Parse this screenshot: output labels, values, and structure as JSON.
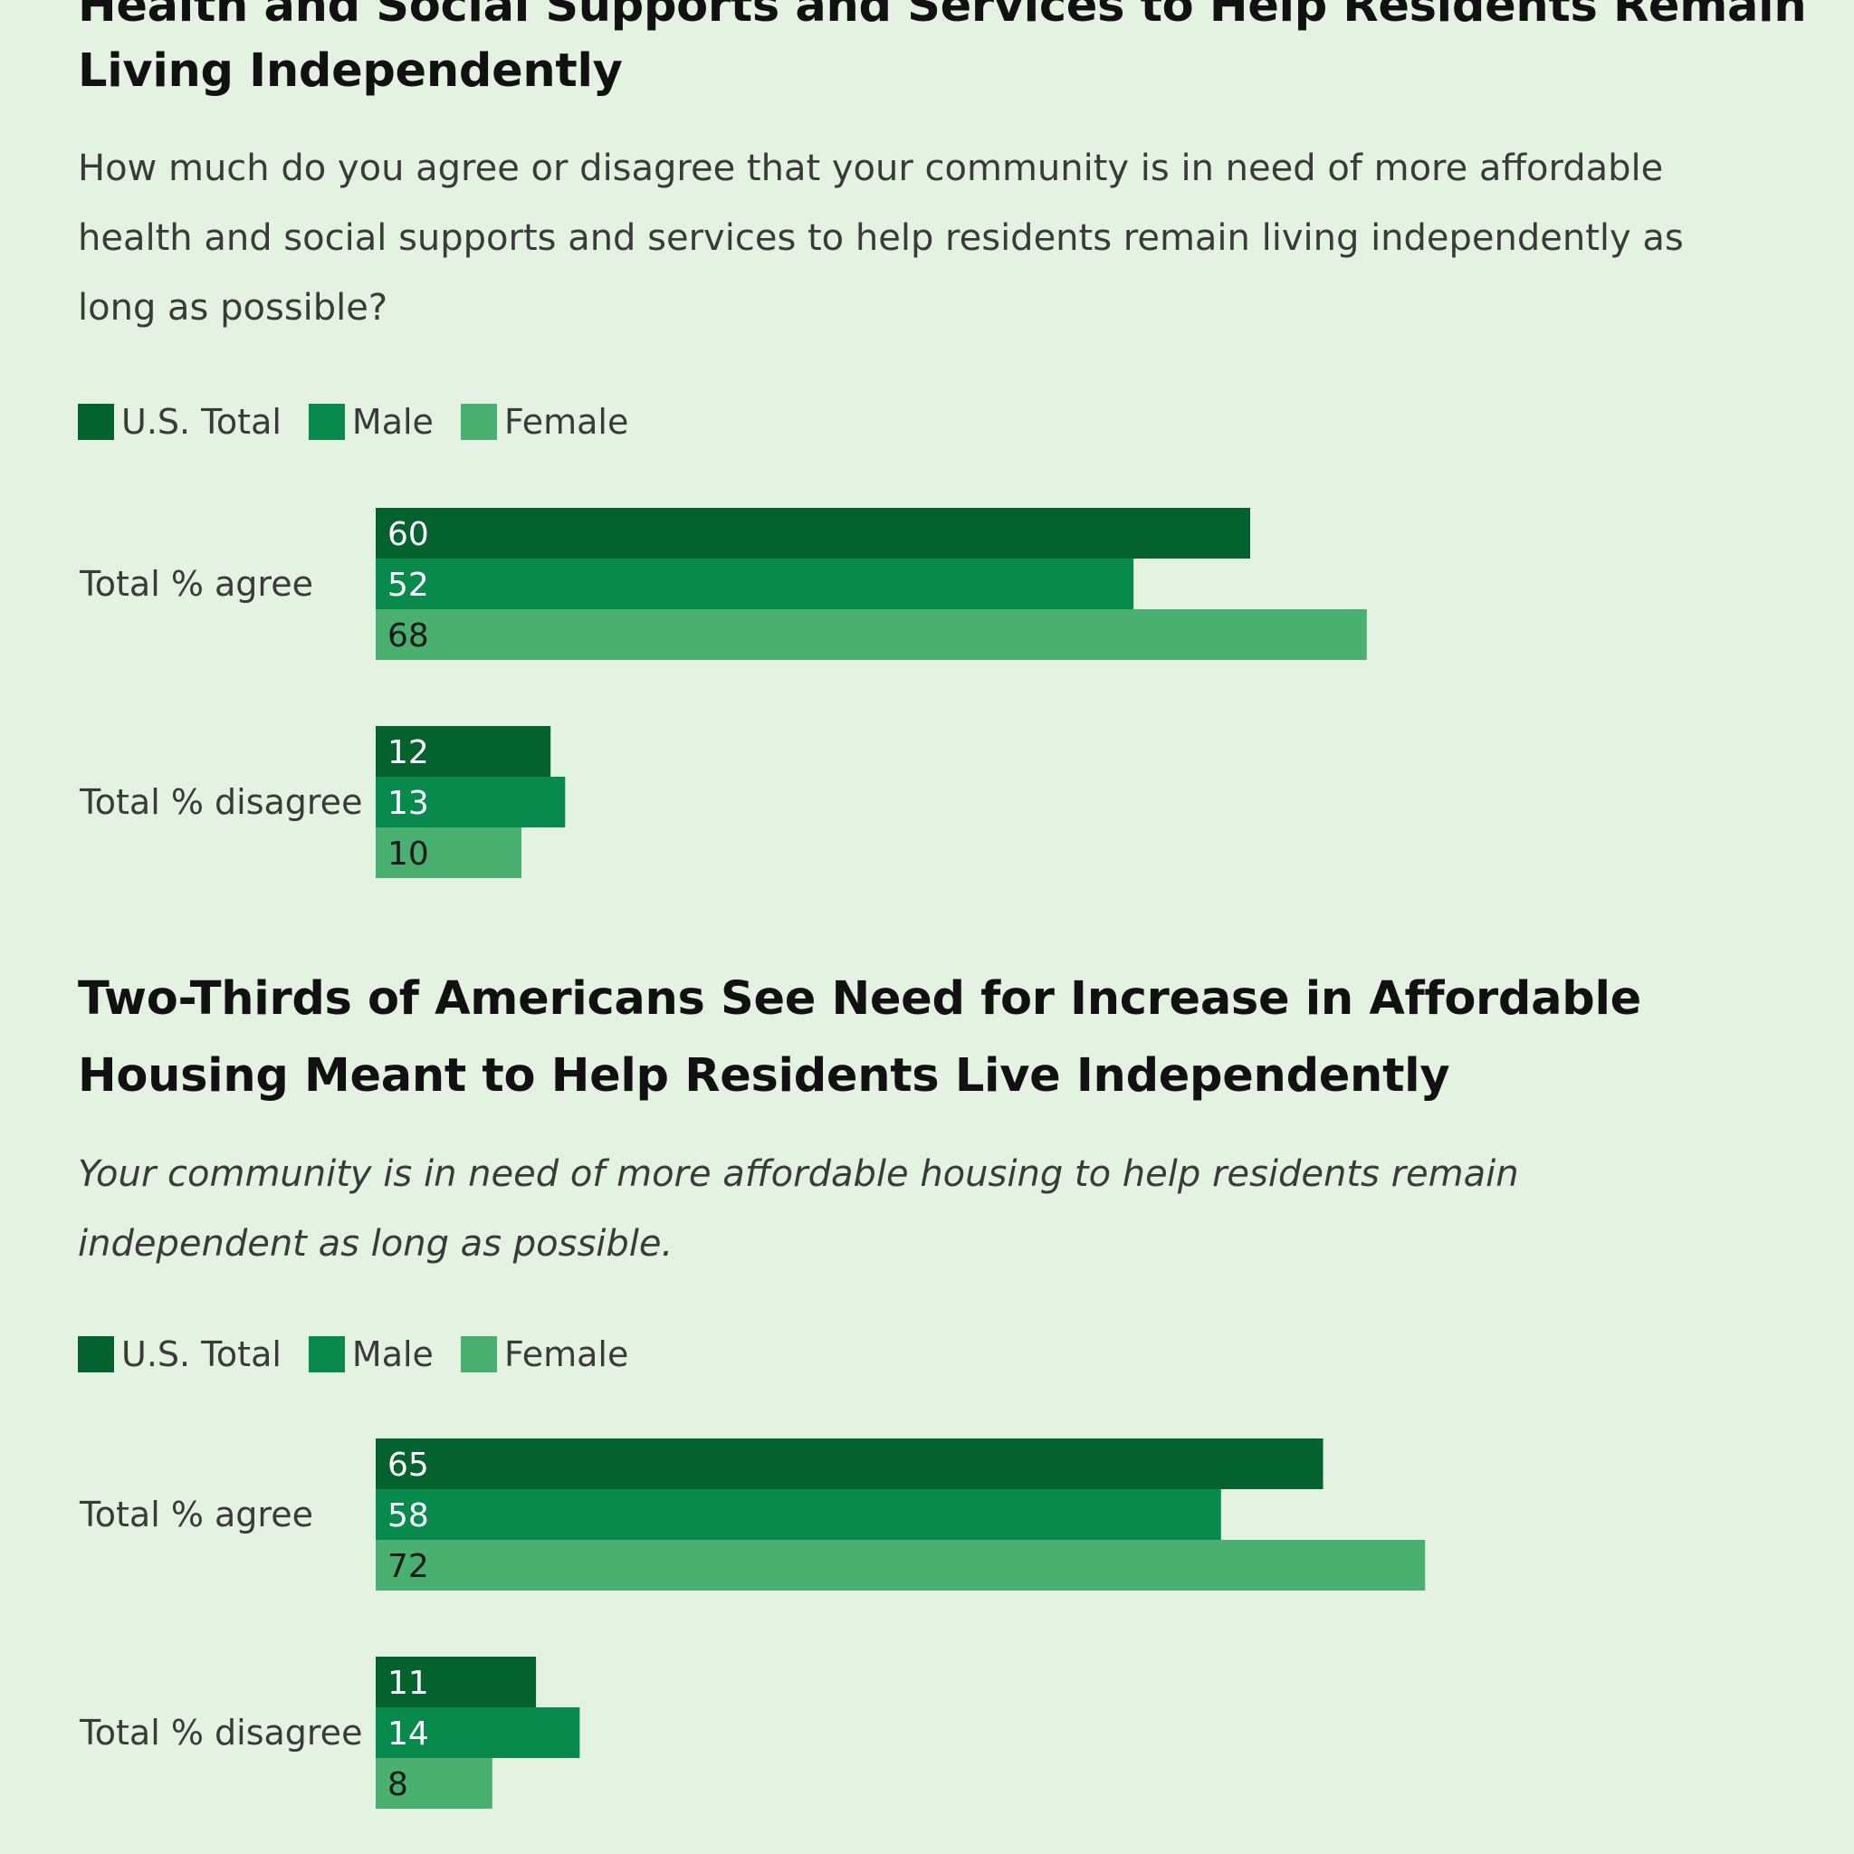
{
  "colors": {
    "us_total": "#04622e",
    "male": "#088a4c",
    "female": "#49b06f",
    "background": "#e4f3e1"
  },
  "section1": {
    "title_line1": "Health and Social Supports and Services to Help Residents Remain",
    "title_line2": "Living Independently",
    "subtitle_line1": "How much do you agree or disagree that your community is in need of more affordable",
    "subtitle_line2": "health and social supports and services to help residents remain living independently as",
    "subtitle_line3": "long as possible?"
  },
  "section2": {
    "title_line1": "Two-Thirds of Americans See Need for Increase in Affordable",
    "title_line2": "Housing Meant to Help Residents Live Independently",
    "subtitle_line1": "Your community is in need of more affordable housing to help residents remain",
    "subtitle_line2": "independent as long as possible."
  },
  "legend": {
    "us_total": "U.S. Total",
    "male": "Male",
    "female": "Female"
  },
  "chart_data": [
    {
      "type": "bar",
      "orientation": "horizontal",
      "title": "Health and Social Supports and Services to Help Residents Remain Living Independently",
      "categories": [
        "Total % agree",
        "Total % disagree"
      ],
      "series": [
        {
          "name": "U.S. Total",
          "values": [
            60,
            12
          ]
        },
        {
          "name": "Male",
          "values": [
            52,
            13
          ]
        },
        {
          "name": "Female",
          "values": [
            68,
            10
          ]
        }
      ],
      "xlim": [
        0,
        100
      ],
      "grid": false,
      "legend_position": "top-left"
    },
    {
      "type": "bar",
      "orientation": "horizontal",
      "title": "Two-Thirds of Americans See Need for Increase in Affordable Housing Meant to Help Residents Live Independently",
      "categories": [
        "Total % agree",
        "Total % disagree"
      ],
      "series": [
        {
          "name": "U.S. Total",
          "values": [
            65,
            11
          ]
        },
        {
          "name": "Male",
          "values": [
            58,
            14
          ]
        },
        {
          "name": "Female",
          "values": [
            72,
            8
          ]
        }
      ],
      "xlim": [
        0,
        100
      ],
      "grid": false,
      "legend_position": "top-left"
    }
  ]
}
